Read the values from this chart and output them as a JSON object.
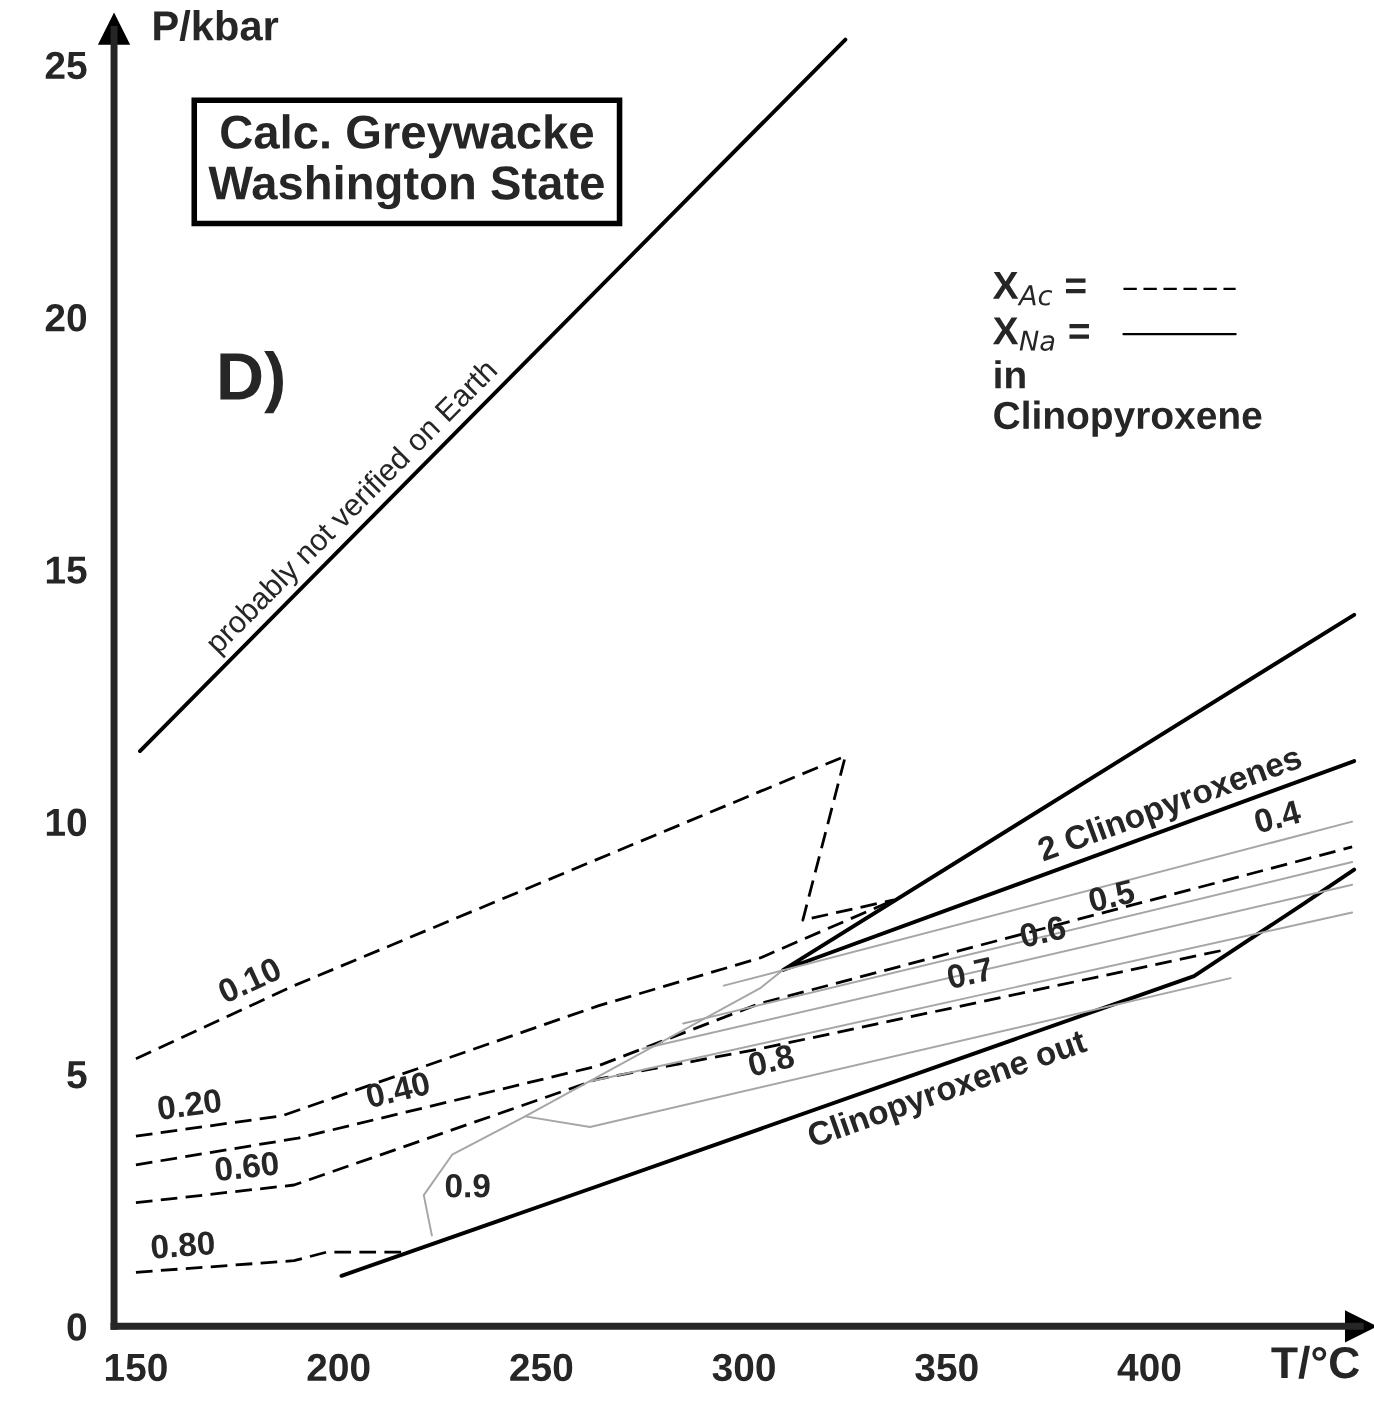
{
  "chart_data": {
    "type": "line",
    "xlabel": "T/°C",
    "ylabel": "P/kbar",
    "xlim": [
      144.6,
      452
    ],
    "ylim": [
      0,
      25.7
    ],
    "xticks": [
      150,
      200,
      250,
      300,
      350,
      400
    ],
    "yticks": [
      0,
      5,
      10,
      15,
      20,
      25
    ],
    "grid": false,
    "marker": "none",
    "series": [
      {
        "color": "#000000",
        "line_style": "solid",
        "x": [
          151,
          325
        ],
        "values": [
          11.4,
          25.5
        ]
      },
      {
        "color": "#000000",
        "line_style": "dashed",
        "x": [
          150,
          189,
          304,
          325,
          314.5,
          337
        ],
        "values": [
          5.3,
          6.75,
          10.6,
          11.3,
          8.05,
          8.45
        ]
      },
      {
        "color": "#000000",
        "line_style": "dashed",
        "x": [
          150,
          186,
          264,
          304,
          337
        ],
        "values": [
          3.77,
          4.17,
          6.35,
          7.3,
          8.45
        ]
      },
      {
        "color": "#000000",
        "line_style": "dashed",
        "x": [
          150,
          190,
          264,
          304,
          450
        ],
        "values": [
          3.2,
          3.73,
          5.16,
          6.4,
          9.5
        ]
      },
      {
        "color": "#000000",
        "line_style": "dashed",
        "x": [
          150,
          189,
          264,
          304,
          418
        ],
        "values": [
          2.45,
          2.8,
          4.9,
          5.5,
          7.45
        ]
      },
      {
        "color": "#000000",
        "line_style": "dashed",
        "x": [
          150,
          189,
          197,
          216
        ],
        "values": [
          1.07,
          1.3,
          1.47,
          1.47
        ]
      },
      {
        "color": "#000000",
        "line_style": "solid",
        "x": [
          200.7,
          264,
          411,
          438,
          450.5
        ],
        "values": [
          1.0,
          2.78,
          6.94,
          8.37,
          9.05
        ]
      },
      {
        "color": "#000000",
        "line_style": "solid",
        "x": [
          450.5,
          309.6,
          450.5
        ],
        "values": [
          14.1,
          7.06,
          11.2
        ]
      },
      {
        "color": "#a6a6a6",
        "line_style": "solid",
        "x": [
          223,
          221,
          228,
          246,
          304,
          309.6
        ],
        "values": [
          1.8,
          2.6,
          3.4,
          4.16,
          6.7,
          7.06
        ]
      },
      {
        "color": "#a6a6a6",
        "line_style": "solid",
        "x": [
          246,
          262,
          420
        ],
        "values": [
          4.16,
          3.95,
          6.9
        ]
      },
      {
        "color": "#a6a6a6",
        "line_style": "solid",
        "x": [
          262,
          450
        ],
        "values": [
          4.85,
          8.2
        ]
      },
      {
        "color": "#a6a6a6",
        "line_style": "solid",
        "x": [
          275,
          450
        ],
        "values": [
          5.5,
          8.75
        ]
      },
      {
        "color": "#a6a6a6",
        "line_style": "solid",
        "x": [
          285,
          450
        ],
        "values": [
          6.0,
          9.2
        ]
      },
      {
        "color": "#a6a6a6",
        "line_style": "solid",
        "x": [
          295,
          450
        ],
        "values": [
          6.75,
          10.0
        ]
      }
    ],
    "annotations": [
      "X$_{Ac}$ =",
      "X$_{Na}$ =",
      "in\nClinopyroxene",
      "Calc. Greywacke\nWashington State",
      "D)",
      {
        "text": "probably not verified on Earth",
        "x": 207,
        "y": 15.94
      },
      {
        "text": "0.10",
        "x": 180.5,
        "y": 6.43
      },
      {
        "text": "0.20",
        "x": 164,
        "y": 3.93
      },
      {
        "text": "0.40",
        "x": 216,
        "y": 4.23
      },
      {
        "text": "0.60",
        "x": 178,
        "y": 2.7
      },
      {
        "text": "0.80",
        "x": 162,
        "y": 1.14
      },
      {
        "text": "0.9",
        "x": 222,
        "y": 2.2
      },
      {
        "text": "0.8",
        "x": 308,
        "y": 4.81
      },
      {
        "text": "0.7",
        "x": 357,
        "y": 6.54
      },
      {
        "text": "0.6",
        "x": 375,
        "y": 7.36
      },
      {
        "text": "0.5",
        "x": 392,
        "y": 8.07
      },
      {
        "text": "0.4",
        "x": 433,
        "y": 9.64
      },
      {
        "text": "2 Clinopyroxenes",
        "x": 407,
        "y": 9.92
      },
      {
        "text": "Clinopyroxene out",
        "x": 348,
        "y": 5.16
      }
    ]
  }
}
